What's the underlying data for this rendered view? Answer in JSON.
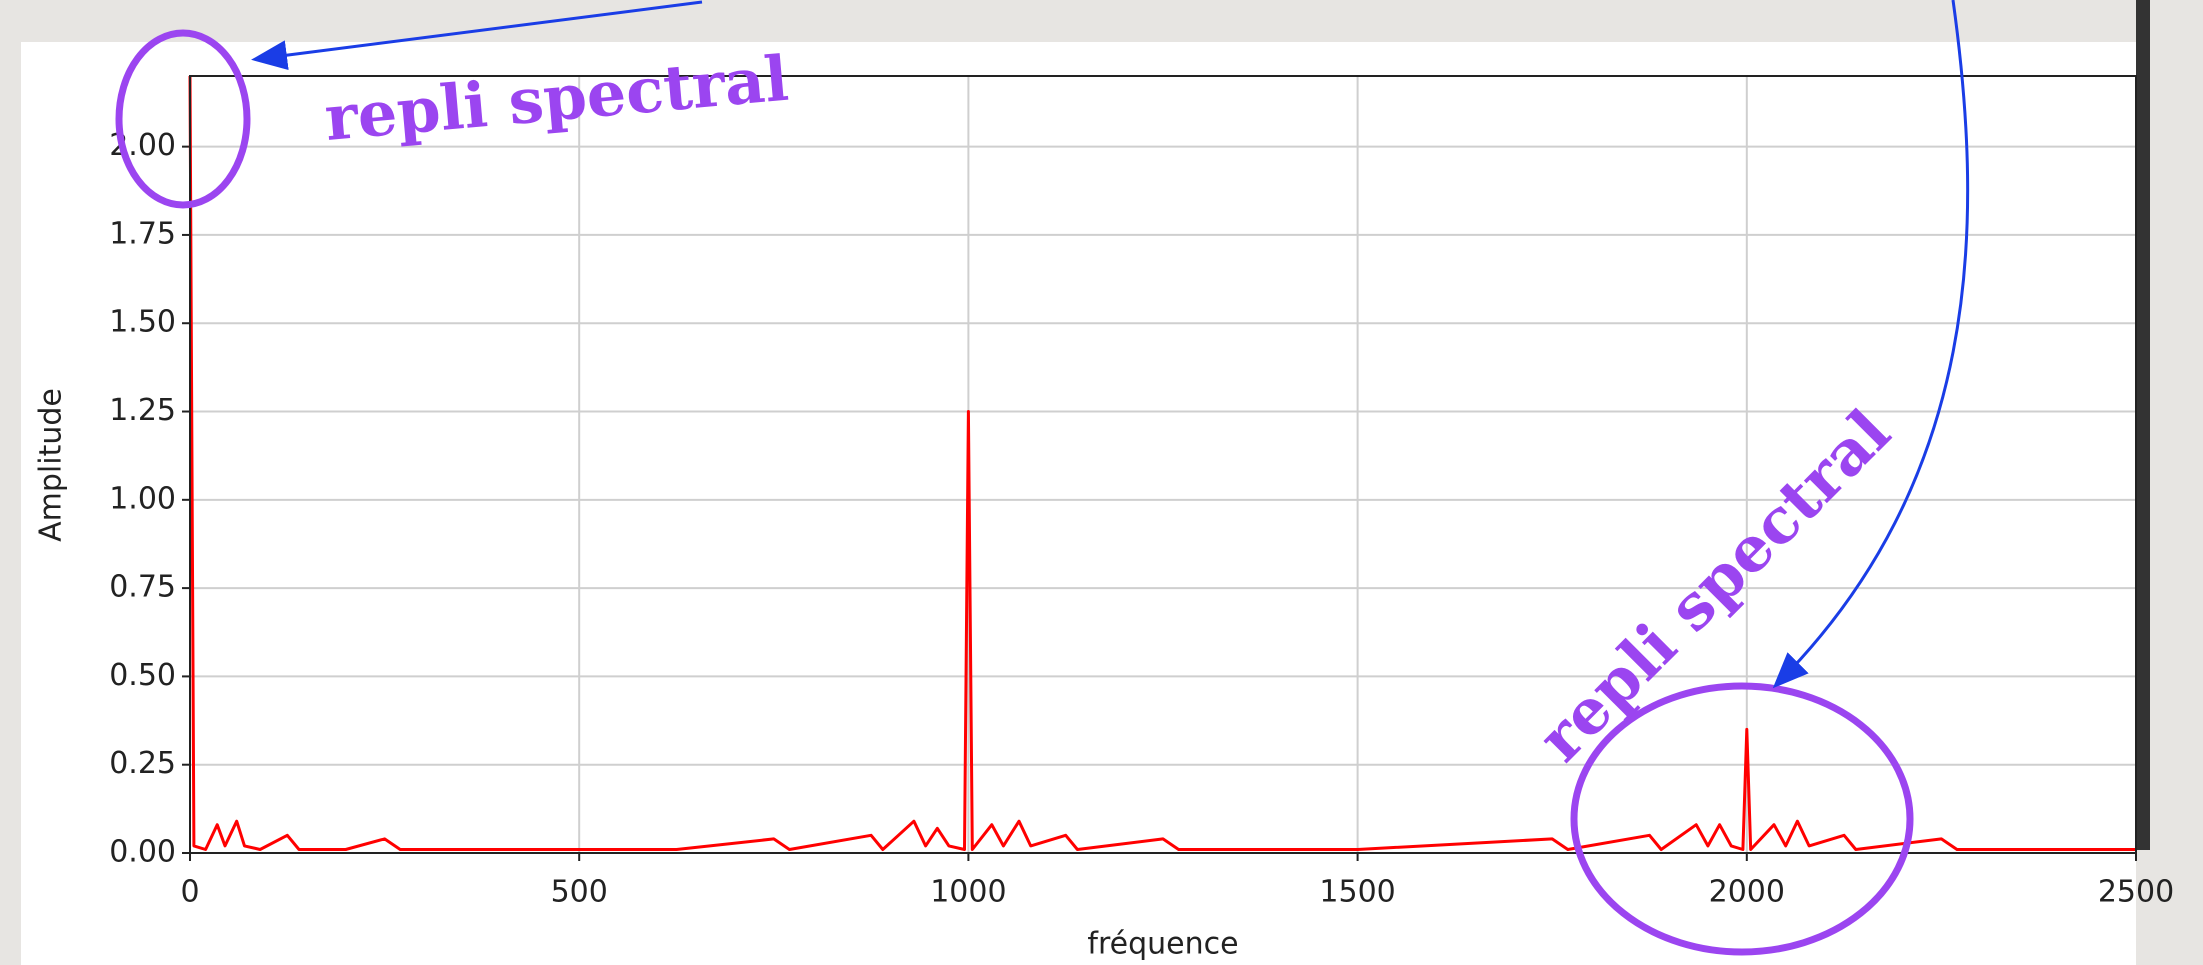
{
  "chart_data": {
    "type": "line",
    "xlabel": "fréquence",
    "ylabel": "Amplitude",
    "annotations": [
      "repli spectral",
      "repli spectral"
    ],
    "color": "#ff0000",
    "x": [
      0,
      5,
      20,
      35,
      45,
      60,
      70,
      90,
      125,
      140,
      200,
      250,
      270,
      375,
      500,
      625,
      750,
      770,
      875,
      890,
      930,
      945,
      960,
      975,
      995,
      1000,
      1005,
      1030,
      1045,
      1065,
      1080,
      1125,
      1140,
      1250,
      1270,
      1500,
      1750,
      1770,
      1875,
      1890,
      1935,
      1950,
      1965,
      1980,
      1995,
      2000,
      2005,
      2035,
      2050,
      2065,
      2080,
      2125,
      2140,
      2250,
      2270,
      2500
    ],
    "values": [
      2.2,
      0.02,
      0.01,
      0.08,
      0.02,
      0.09,
      0.02,
      0.01,
      0.05,
      0.01,
      0.01,
      0.04,
      0.01,
      0.01,
      0.01,
      0.01,
      0.04,
      0.01,
      0.05,
      0.01,
      0.09,
      0.02,
      0.07,
      0.02,
      0.01,
      1.25,
      0.01,
      0.08,
      0.02,
      0.09,
      0.02,
      0.05,
      0.01,
      0.04,
      0.01,
      0.01,
      0.04,
      0.01,
      0.05,
      0.01,
      0.08,
      0.02,
      0.08,
      0.02,
      0.01,
      0.35,
      0.01,
      0.08,
      0.02,
      0.09,
      0.02,
      0.05,
      0.01,
      0.04,
      0.01,
      0.01
    ],
    "xlim": [
      0,
      2500
    ],
    "xticks": [
      0,
      500,
      1000,
      1500,
      2000,
      2500
    ],
    "ylim": [
      0,
      2.2
    ],
    "yticks": [
      {
        "value": 0,
        "label": "0.00"
      },
      {
        "value": 0.25,
        "label": "0.25"
      },
      {
        "value": 0.5,
        "label": "0.50"
      },
      {
        "value": 0.75,
        "label": "0.75"
      },
      {
        "value": 1,
        "label": "1.00"
      },
      {
        "value": 1.25,
        "label": "1.25"
      },
      {
        "value": 1.5,
        "label": "1.50"
      },
      {
        "value": 1.75,
        "label": "1.75"
      },
      {
        "value": 2,
        "label": "2.00"
      }
    ],
    "grid": true
  }
}
